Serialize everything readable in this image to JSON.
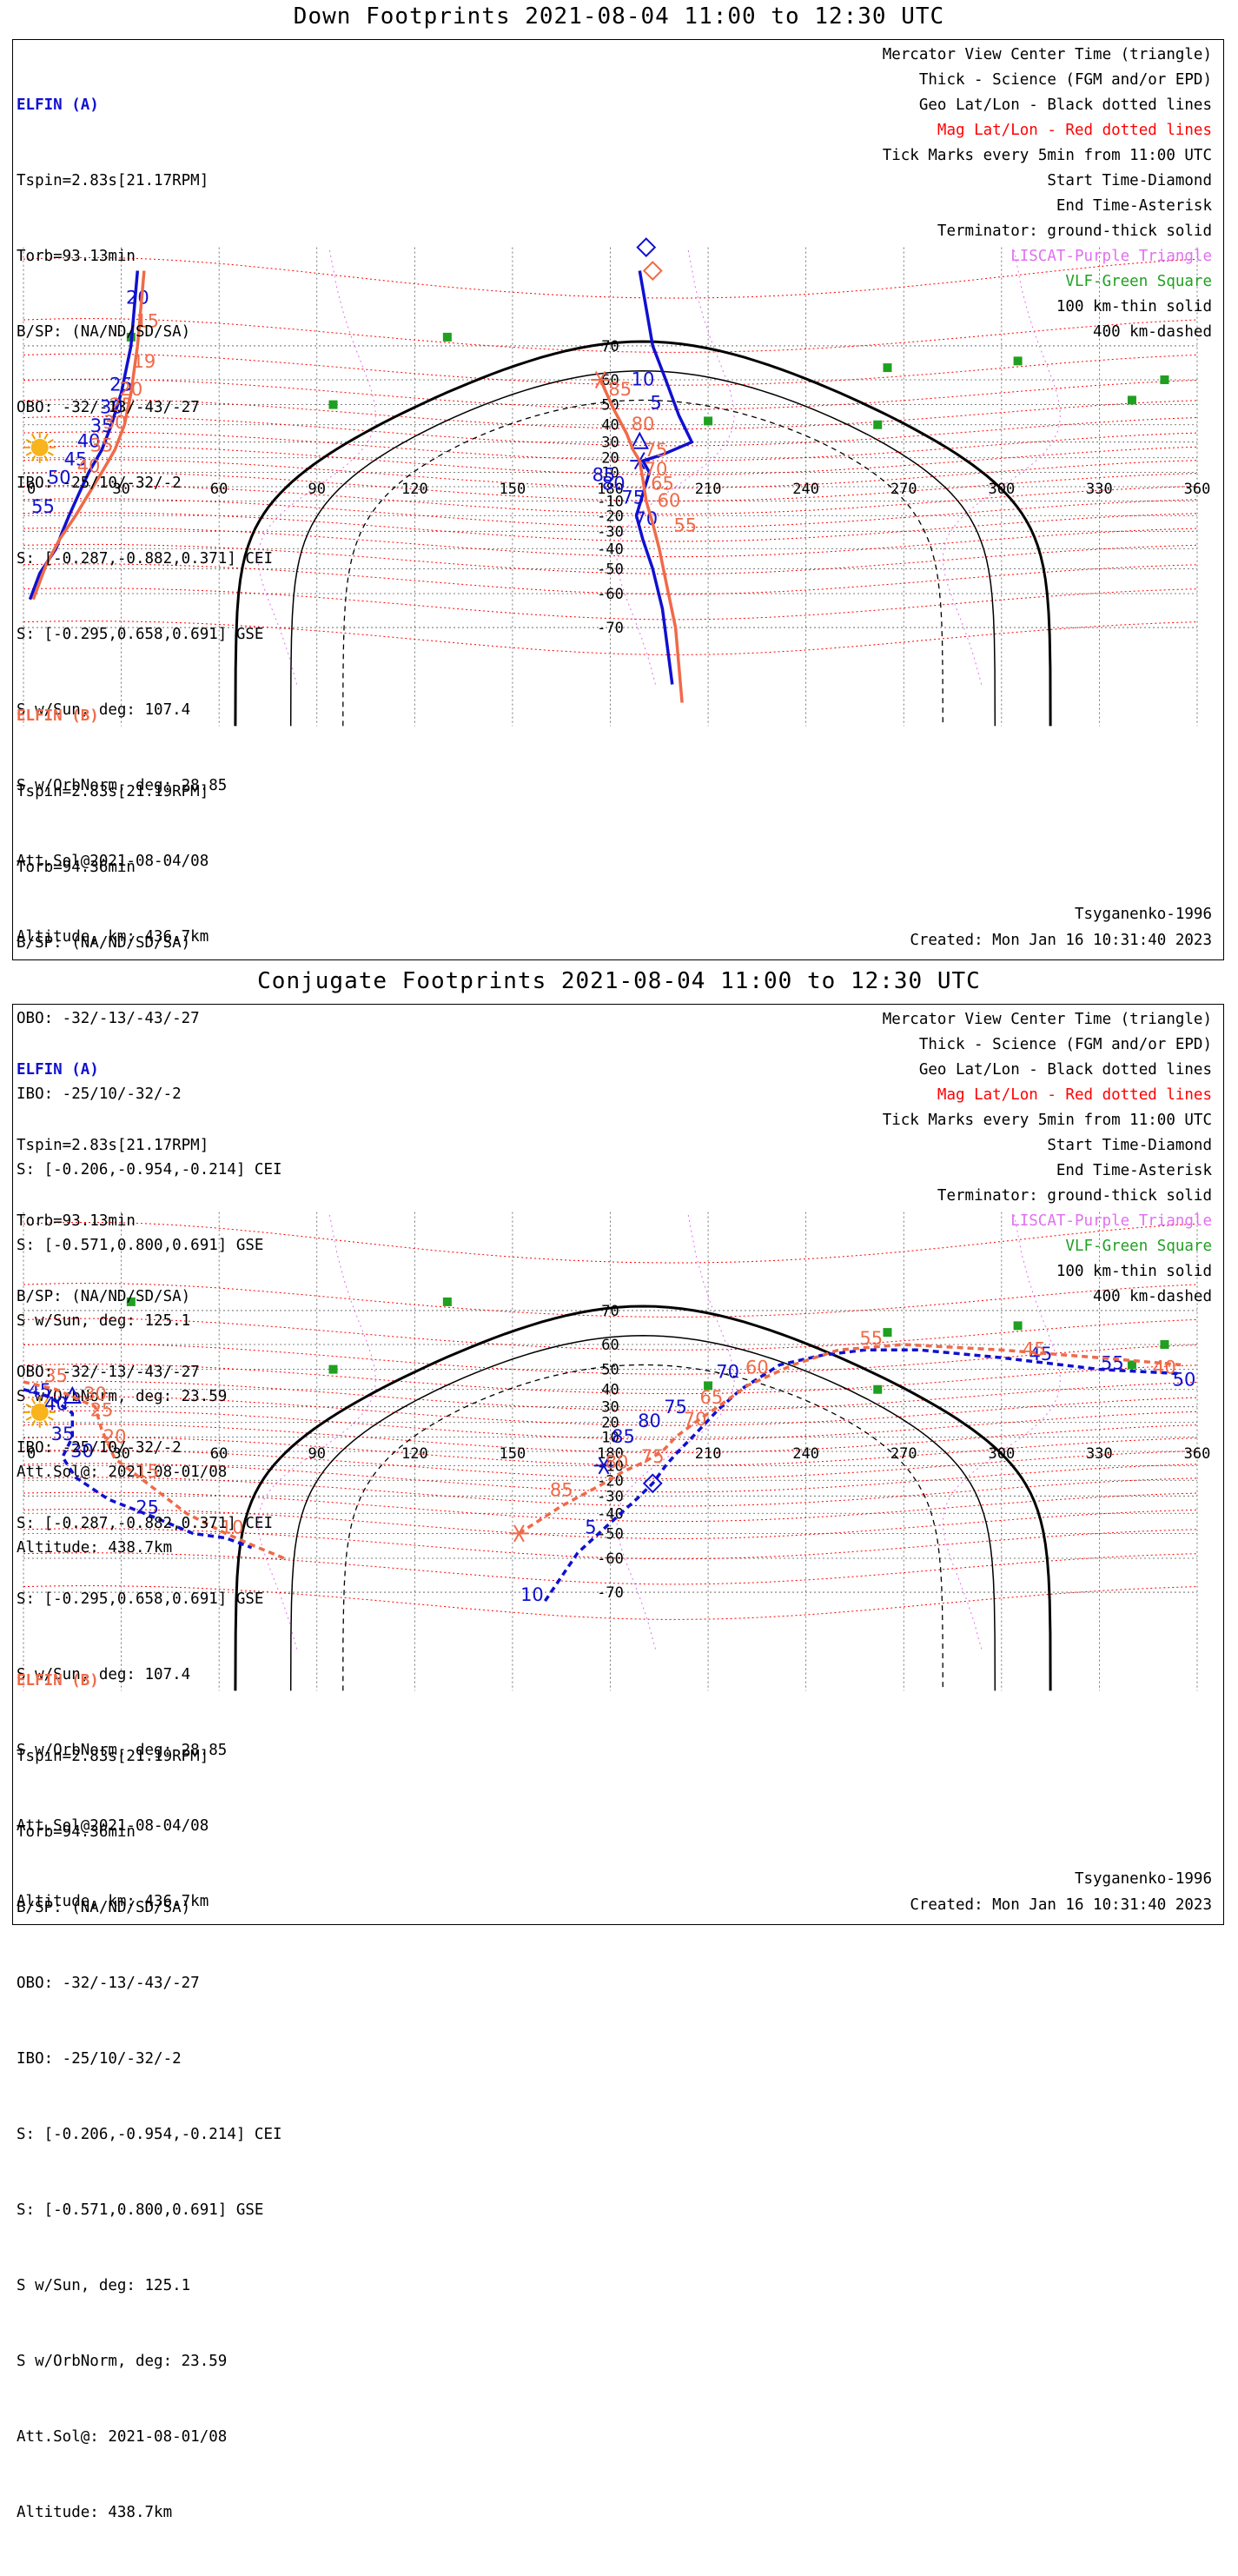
{
  "panels": [
    {
      "title": "Down Footprints 2021-08-04 11:00 to 12:30 UTC",
      "elfin_a": {
        "header": "ELFIN (A)",
        "lines": [
          "Tspin=2.83s[21.17RPM]",
          "Torb=93.13min",
          "B/SP: (NA/ND/SD/SA)",
          "OBO: -32/-13/-43/-27",
          "IBO: -25/10/-32/-2",
          "S: [-0.287,-0.882,0.371] CEI",
          "S: [-0.295,0.658,0.691] GSE",
          "S w/Sun, deg: 107.4",
          "S w/OrbNorm, deg: 28.85",
          "Att.Sol@2021-08-04/08",
          "Altitude, km: 436.7km"
        ]
      },
      "elfin_b": {
        "header": "ELFIN (B)",
        "lines": [
          "Tspin=2.83s[21.19RPM]",
          "Torb=94.36min",
          "B/SP: (NA/ND/SD/SA)",
          "OBO: -32/-13/-43/-27",
          "IBO: -25/10/-32/-2",
          "S: [-0.206,-0.954,-0.214] CEI",
          "S: [-0.571,0.800,0.691] GSE",
          "S w/Sun, deg: 125.1",
          "S w/OrbNorm, deg: 23.59",
          "Att.Sol@: 2021-08-01/08",
          "Altitude: 438.7km"
        ]
      },
      "model": "Tsyganenko-1996",
      "created": "Created: Mon Jan 16 10:31:40 2023"
    },
    {
      "title": "Conjugate Footprints 2021-08-04 11:00 to 12:30 UTC",
      "elfin_a": {
        "header": "ELFIN (A)",
        "lines": [
          "Tspin=2.83s[21.17RPM]",
          "Torb=93.13min",
          "B/SP: (NA/ND/SD/SA)",
          "OBO: -32/-13/-43/-27",
          "IBO: -25/10/-32/-2",
          "S: [-0.287,-0.882,0.371] CEI",
          "S: [-0.295,0.658,0.691] GSE",
          "S w/Sun, deg: 107.4",
          "S w/OrbNorm, deg: 28.85",
          "Att.Sol@2021-08-04/08",
          "Altitude, km: 436.7km"
        ]
      },
      "elfin_b": {
        "header": "ELFIN (B)",
        "lines": [
          "Tspin=2.83s[21.19RPM]",
          "Torb=94.36min",
          "B/SP: (NA/ND/SD/SA)",
          "OBO: -32/-13/-43/-27",
          "IBO: -25/10/-32/-2",
          "S: [-0.206,-0.954,-0.214] CEI",
          "S: [-0.571,0.800,0.691] GSE",
          "S w/Sun, deg: 125.1",
          "S w/OrbNorm, deg: 23.59",
          "Att.Sol@: 2021-08-01/08",
          "Altitude: 438.7km"
        ]
      },
      "model": "Tsyganenko-1996",
      "created": "Created: Mon Jan 16 10:31:40 2023"
    }
  ],
  "legend": [
    {
      "text": "Mercator View Center Time (triangle)",
      "color": "#000000"
    },
    {
      "text": "Thick - Science (FGM and/or EPD)",
      "color": "#000000"
    },
    {
      "text": "Geo Lat/Lon - Black dotted lines",
      "color": "#000000"
    },
    {
      "text": "Mag Lat/Lon - Red dotted lines",
      "color": "#ff0000"
    },
    {
      "text": "Tick Marks every 5min from 11:00 UTC",
      "color": "#000000"
    },
    {
      "text": "Start Time-Diamond",
      "color": "#000000"
    },
    {
      "text": "End Time-Asterisk",
      "color": "#000000"
    },
    {
      "text": "Terminator: ground-thick solid",
      "color": "#000000"
    },
    {
      "text": "LISCAT-Purple Triangle",
      "color": "#e070f0"
    },
    {
      "text": "VLF-Green Square",
      "color": "#20a020"
    },
    {
      "text": "100 km-thin solid",
      "color": "#000000"
    },
    {
      "text": "400 km-dashed",
      "color": "#000000"
    }
  ],
  "colors": {
    "elfin_a": "#1010d0",
    "elfin_b": "#f06a48",
    "mag_grid": "#ff0000",
    "liscat": "#e070f0",
    "vlf": "#20a020"
  },
  "map_axes": {
    "lon_ticks": [
      0,
      30,
      60,
      90,
      120,
      150,
      180,
      210,
      240,
      270,
      300,
      330,
      360
    ],
    "lat_ticks": [
      70,
      60,
      50,
      40,
      30,
      20,
      10,
      -10,
      -20,
      -30,
      -40,
      -50,
      -60,
      -70
    ]
  },
  "chart_data": [
    {
      "type": "map",
      "title": "Down Footprints 2021-08-04 11:00 to 12:30 UTC",
      "series": [
        {
          "name": "ELFIN (A)",
          "color": "#1010d0",
          "dashed": false,
          "track": [
            [
              35,
              82
            ],
            [
              33,
              70
            ],
            [
              30,
              55
            ],
            [
              27,
              40
            ],
            [
              24,
              25
            ],
            [
              20,
              10
            ],
            [
              17,
              -5
            ],
            [
              14,
              -20
            ],
            [
              12,
              -30
            ],
            [
              10,
              -40
            ],
            [
              5,
              -52
            ],
            [
              2,
              -62
            ]
          ],
          "ticks": [
            {
              "label": "20",
              "lon": 35,
              "lat": 78
            },
            {
              "label": "25",
              "lon": 30,
              "lat": 56
            },
            {
              "label": "30",
              "lon": 27,
              "lat": 46
            },
            {
              "label": "35",
              "lon": 24,
              "lat": 36
            },
            {
              "label": "40",
              "lon": 20,
              "lat": 27
            },
            {
              "label": "45",
              "lon": 16,
              "lat": 15
            },
            {
              "label": "50",
              "lon": 11,
              "lat": 2
            },
            {
              "label": "55",
              "lon": 6,
              "lat": -18
            }
          ]
        },
        {
          "name": "ELFIN (B)",
          "color": "#f06a48",
          "dashed": false,
          "track": [
            [
              37,
              82
            ],
            [
              35,
              70
            ],
            [
              33,
              55
            ],
            [
              31,
              40
            ],
            [
              28,
              25
            ],
            [
              24,
              10
            ],
            [
              20,
              -5
            ],
            [
              16,
              -20
            ],
            [
              11,
              -35
            ],
            [
              7,
              -48
            ],
            [
              3,
              -62
            ]
          ],
          "ticks": [
            {
              "label": "15",
              "lon": 38,
              "lat": 74
            },
            {
              "label": "19",
              "lon": 37,
              "lat": 64
            },
            {
              "label": "20",
              "lon": 33,
              "lat": 54
            },
            {
              "label": "25",
              "lon": 30,
              "lat": 47
            },
            {
              "label": "30",
              "lon": 28,
              "lat": 38
            },
            {
              "label": "35",
              "lon": 24,
              "lat": 24
            },
            {
              "label": "40",
              "lon": 20,
              "lat": 10
            }
          ]
        },
        {
          "name": "ELFIN (A) Pacific",
          "color": "#1010d0",
          "dashed": false,
          "track": [
            [
              189,
              82
            ],
            [
              193,
              70
            ],
            [
              197,
              60
            ],
            [
              201,
              45
            ],
            [
              205,
              30
            ],
            [
              196,
              22
            ],
            [
              190,
              18
            ],
            [
              192,
              10
            ],
            [
              190,
              -5
            ],
            [
              188,
              -20
            ],
            [
              190,
              -35
            ],
            [
              193,
              -50
            ],
            [
              196,
              -65
            ],
            [
              199,
              -80
            ]
          ],
          "start": [
            191,
            86
          ],
          "end": [
            189,
            18
          ],
          "view": [
            189,
            30
          ],
          "ticks": [
            {
              "label": "10",
              "lon": 190,
              "lat": 58
            },
            {
              "label": "5",
              "lon": 194,
              "lat": 48
            },
            {
              "label": "85",
              "lon": 178,
              "lat": 4
            },
            {
              "label": "80",
              "lon": 181,
              "lat": -2
            },
            {
              "label": "75",
              "lon": 187,
              "lat": -12
            },
            {
              "label": "70",
              "lon": 191,
              "lat": -26
            }
          ]
        },
        {
          "name": "ELFIN (B) Pacific",
          "color": "#f06a48",
          "dashed": false,
          "track": [
            [
              177,
              60
            ],
            [
              181,
              48
            ],
            [
              185,
              35
            ],
            [
              187,
              25
            ],
            [
              189,
              18
            ],
            [
              190,
              5
            ],
            [
              191,
              -10
            ],
            [
              193,
              -25
            ],
            [
              195,
              -40
            ],
            [
              197,
              -55
            ],
            [
              200,
              -70
            ],
            [
              202,
              -82
            ]
          ],
          "start": [
            193,
            82
          ],
          "end": [
            177,
            60
          ],
          "ticks": [
            {
              "label": "85",
              "lon": 183,
              "lat": 54
            },
            {
              "label": "80",
              "lon": 190,
              "lat": 37
            },
            {
              "label": "75",
              "lon": 194,
              "lat": 21
            },
            {
              "label": "70",
              "lon": 194,
              "lat": 8
            },
            {
              "label": "65",
              "lon": 196,
              "lat": -2
            },
            {
              "label": "60",
              "lon": 198,
              "lat": -14
            },
            {
              "label": "55",
              "lon": 203,
              "lat": -30
            }
          ]
        }
      ]
    },
    {
      "type": "map",
      "title": "Conjugate Footprints 2021-08-04 11:00 to 12:30 UTC",
      "series": [
        {
          "name": "ELFIN (A)",
          "color": "#1010d0",
          "dashed": true,
          "track": [
            [
              0,
              40
            ],
            [
              8,
              36
            ],
            [
              15,
              26
            ],
            [
              15,
              10
            ],
            [
              12,
              -4
            ],
            [
              16,
              -18
            ],
            [
              26,
              -32
            ],
            [
              40,
              -42
            ],
            [
              52,
              -50
            ],
            [
              62,
              -52
            ],
            [
              70,
              -56
            ]
          ],
          "view": [
            15,
            36
          ],
          "ticks": [
            {
              "label": "45",
              "lon": 5,
              "lat": 36
            },
            {
              "label": "40",
              "lon": 10,
              "lat": 28
            },
            {
              "label": "35",
              "lon": 12,
              "lat": 8
            },
            {
              "label": "30",
              "lon": 18,
              "lat": -4
            },
            {
              "label": "25",
              "lon": 38,
              "lat": -40
            }
          ]
        },
        {
          "name": "ELFIN (B)",
          "color": "#f06a48",
          "dashed": true,
          "track": [
            [
              0,
              44
            ],
            [
              10,
              40
            ],
            [
              22,
              30
            ],
            [
              24,
              15
            ],
            [
              28,
              -5
            ],
            [
              38,
              -22
            ],
            [
              50,
              -40
            ],
            [
              62,
              -50
            ],
            [
              72,
              -56
            ],
            [
              80,
              -60
            ]
          ],
          "ticks": [
            {
              "label": "35",
              "lon": 10,
              "lat": 44
            },
            {
              "label": "30",
              "lon": 22,
              "lat": 34
            },
            {
              "label": "25",
              "lon": 24,
              "lat": 24
            },
            {
              "label": "20",
              "lon": 28,
              "lat": 6
            },
            {
              "label": "15",
              "lon": 38,
              "lat": -18
            },
            {
              "label": "10",
              "lon": 64,
              "lat": -50
            }
          ]
        },
        {
          "name": "ELFIN (A) Pacific",
          "color": "#1010d0",
          "dashed": true,
          "track": [
            [
              160,
              -72
            ],
            [
              170,
              -58
            ],
            [
              180,
              -45
            ],
            [
              188,
              -32
            ],
            [
              193,
              -22
            ],
            [
              197,
              -10
            ],
            [
              200,
              -2
            ],
            [
              206,
              12
            ],
            [
              213,
              28
            ],
            [
              220,
              40
            ],
            [
              232,
              52
            ],
            [
              245,
              56
            ],
            [
              258,
              58
            ],
            [
              275,
              58
            ],
            [
              300,
              55
            ],
            [
              330,
              50
            ],
            [
              355,
              48
            ]
          ],
          "start": [
            193,
            -22
          ],
          "end": [
            178,
            -10
          ],
          "ticks": [
            {
              "label": "10",
              "lon": 156,
              "lat": -72
            },
            {
              "label": "5",
              "lon": 174,
              "lat": -50
            },
            {
              "label": "85",
              "lon": 184,
              "lat": 6
            },
            {
              "label": "80",
              "lon": 192,
              "lat": 17
            },
            {
              "label": "75",
              "lon": 200,
              "lat": 26
            },
            {
              "label": "70",
              "lon": 216,
              "lat": 46
            },
            {
              "label": "45",
              "lon": 312,
              "lat": 54
            },
            {
              "label": "55",
              "lon": 334,
              "lat": 50
            },
            {
              "label": "50",
              "lon": 356,
              "lat": 42
            }
          ]
        },
        {
          "name": "ELFIN (B) Pacific",
          "color": "#f06a48",
          "dashed": true,
          "track": [
            [
              152,
              -50
            ],
            [
              165,
              -36
            ],
            [
              178,
              -22
            ],
            [
              184,
              -14
            ],
            [
              190,
              -8
            ],
            [
              196,
              0
            ],
            [
              200,
              10
            ],
            [
              206,
              20
            ],
            [
              213,
              30
            ],
            [
              222,
              42
            ],
            [
              236,
              52
            ],
            [
              250,
              58
            ],
            [
              270,
              60
            ],
            [
              300,
              58
            ],
            [
              330,
              55
            ],
            [
              355,
              52
            ]
          ],
          "end": [
            152,
            -50
          ],
          "ticks": [
            {
              "label": "85",
              "lon": 165,
              "lat": -30
            },
            {
              "label": "80",
              "lon": 182,
              "lat": -12
            },
            {
              "label": "75",
              "lon": 193,
              "lat": -8
            },
            {
              "label": "70",
              "lon": 206,
              "lat": 18
            },
            {
              "label": "65",
              "lon": 211,
              "lat": 32
            },
            {
              "label": "60",
              "lon": 225,
              "lat": 48
            },
            {
              "label": "55",
              "lon": 260,
              "lat": 60
            },
            {
              "label": "45",
              "lon": 310,
              "lat": 56
            },
            {
              "label": "40",
              "lon": 350,
              "lat": 48
            }
          ]
        }
      ]
    }
  ]
}
